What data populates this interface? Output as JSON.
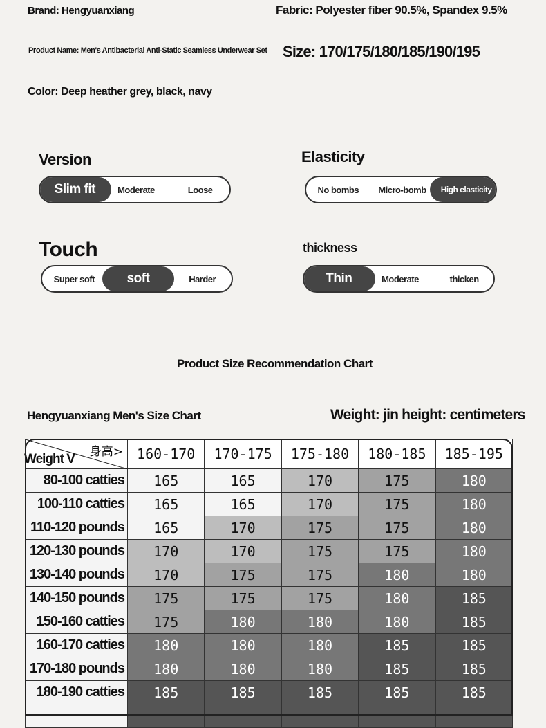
{
  "info": {
    "brand": "Brand: Hengyuanxiang",
    "fabric": "Fabric: Polyester fiber 90.5%, Spandex 9.5%",
    "product_name": "Product Name: Men's Antibacterial Anti-Static Seamless Underwear Set",
    "size": "Size: 170/175/180/185/190/195",
    "color": "Color: Deep heather grey, black, navy"
  },
  "attributes": [
    {
      "label": "Version",
      "options": [
        "Slim fit",
        "Moderate",
        "Loose"
      ],
      "selected": 0
    },
    {
      "label": "Elasticity",
      "options": [
        "No bombs",
        "Micro-bomb",
        "High elasticity"
      ],
      "selected": 2
    },
    {
      "label": "Touch",
      "options": [
        "Super soft",
        "soft",
        "Harder"
      ],
      "selected": 1
    },
    {
      "label": "thickness",
      "options": [
        "Thin",
        "Moderate",
        "thicken"
      ],
      "selected": 0
    }
  ],
  "chart_title": "Product Size Recommendation Chart",
  "table_title": "Hengyuanxiang Men's Size Chart",
  "table_units": "Weight: jin height: centimeters",
  "corner": {
    "height": "身高>",
    "weight": "Weight V"
  },
  "columns": [
    "160-170",
    "170-175",
    "175-180",
    "180-185",
    "185-195"
  ],
  "rows": [
    {
      "weight": "80-100 catties",
      "sizes": [
        "165",
        "165",
        "170",
        "175",
        "180"
      ]
    },
    {
      "weight": "100-110 catties",
      "sizes": [
        "165",
        "165",
        "170",
        "175",
        "180"
      ]
    },
    {
      "weight": "110-120 pounds",
      "sizes": [
        "165",
        "170",
        "175",
        "175",
        "180"
      ]
    },
    {
      "weight": "120-130 pounds",
      "sizes": [
        "170",
        "170",
        "175",
        "175",
        "180"
      ]
    },
    {
      "weight": "130-140 pounds",
      "sizes": [
        "170",
        "175",
        "175",
        "180",
        "180"
      ]
    },
    {
      "weight": "140-150 pounds",
      "sizes": [
        "175",
        "175",
        "175",
        "180",
        "185"
      ]
    },
    {
      "weight": "150-160 catties",
      "sizes": [
        "175",
        "180",
        "180",
        "180",
        "185"
      ]
    },
    {
      "weight": "160-170 catties",
      "sizes": [
        "180",
        "180",
        "180",
        "185",
        "185"
      ]
    },
    {
      "weight": "170-180 pounds",
      "sizes": [
        "180",
        "180",
        "180",
        "185",
        "185"
      ]
    },
    {
      "weight": "180-190 catties",
      "sizes": [
        "185",
        "185",
        "185",
        "185",
        "185"
      ]
    }
  ],
  "size_colors": {
    "165": "#f4f4f4",
    "170": "#bdbdbd",
    "175": "#a2a2a2",
    "180": "#777777",
    "185": "#555555"
  }
}
